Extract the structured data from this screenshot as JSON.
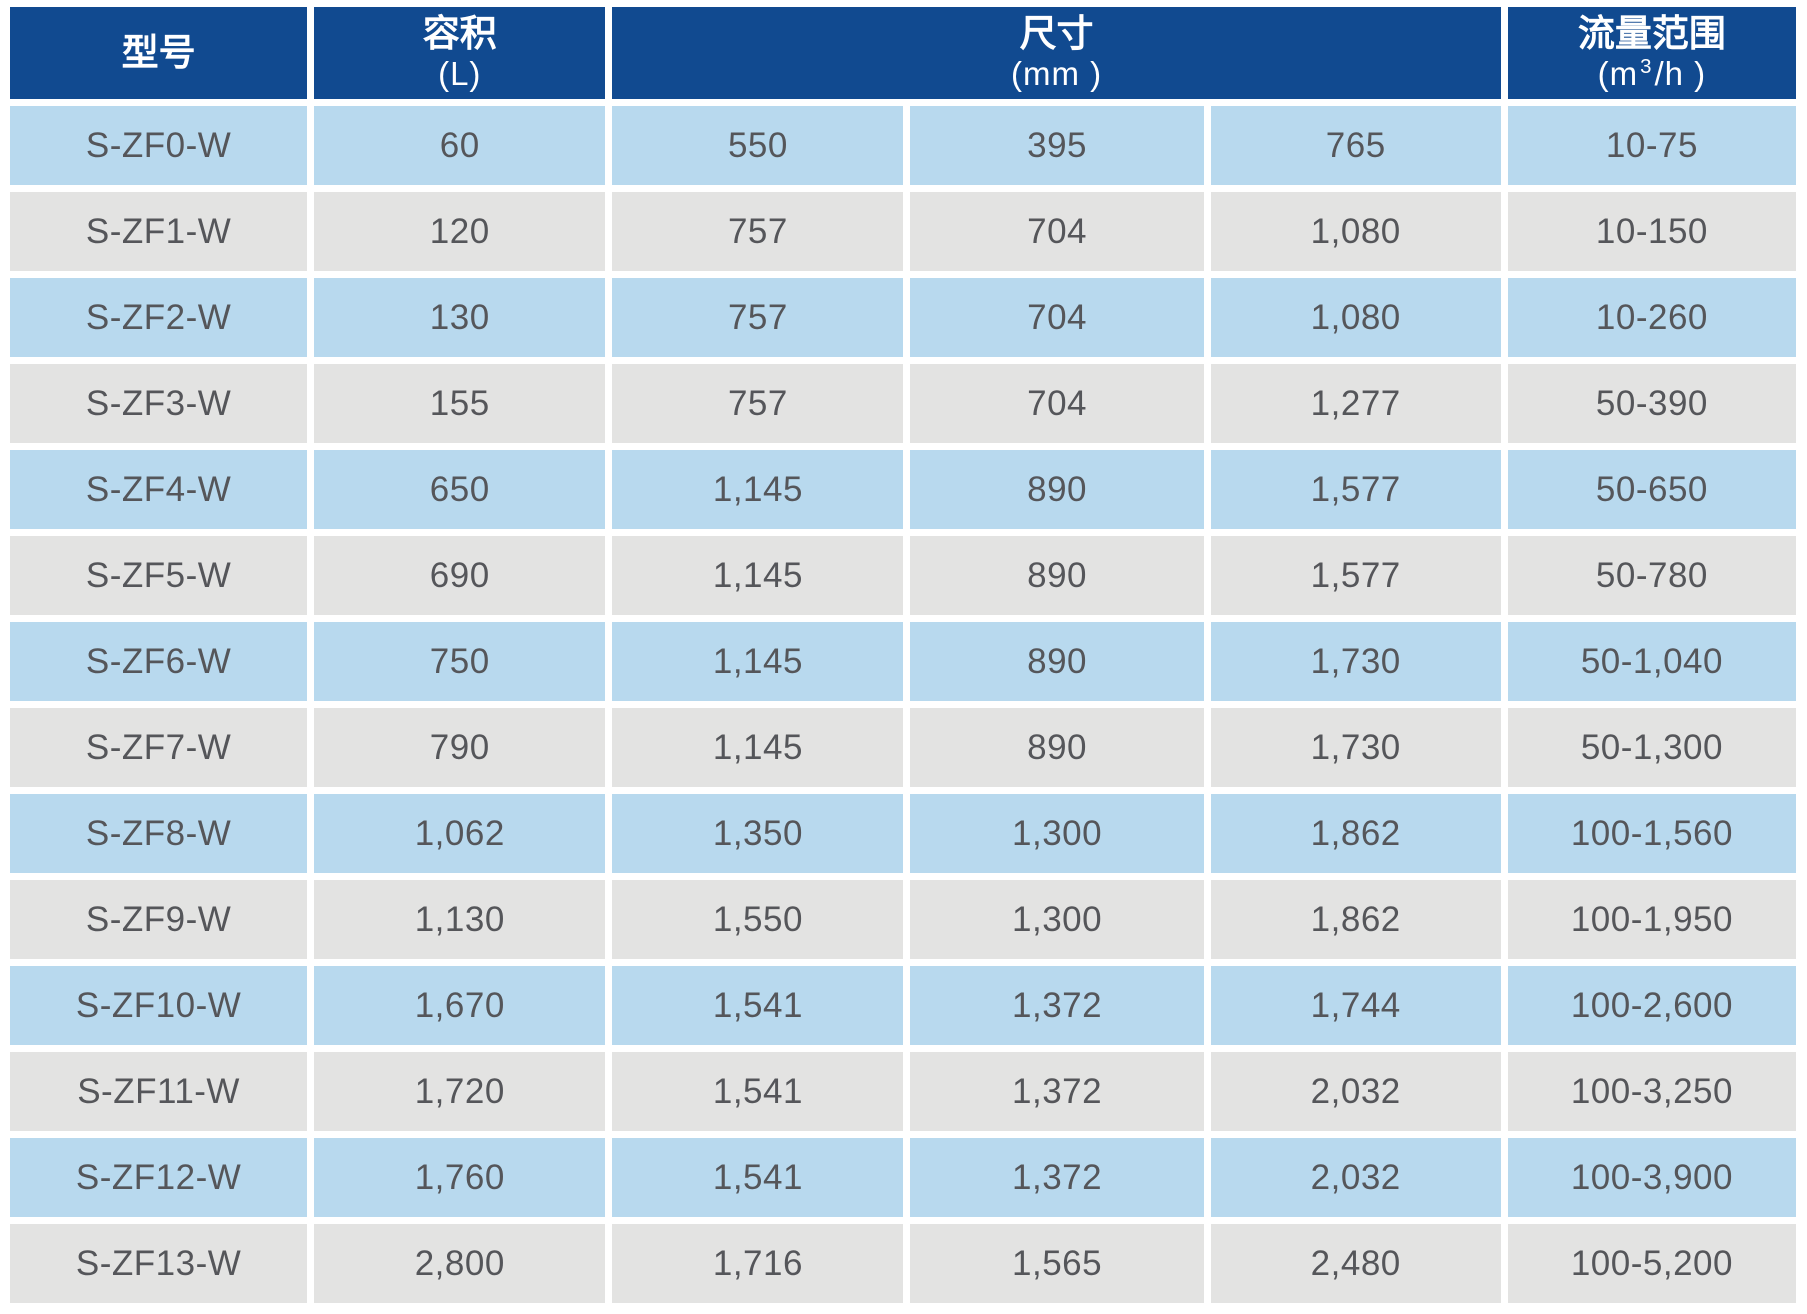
{
  "table": {
    "header": {
      "model_label": "型号",
      "volume_title": "容积",
      "volume_unit": "(L)",
      "size_title": "尺寸",
      "size_unit": "(mm )",
      "flow_title": "流量范围",
      "flow_unit_prefix": "(m",
      "flow_unit_sup": "3",
      "flow_unit_suffix": "/h )"
    },
    "rows": [
      {
        "model": "S-ZF0-W",
        "volume": "60",
        "dim_w": "550",
        "dim_d": "395",
        "dim_h": "765",
        "flow": "10-75"
      },
      {
        "model": "S-ZF1-W",
        "volume": "120",
        "dim_w": "757",
        "dim_d": "704",
        "dim_h": "1,080",
        "flow": "10-150"
      },
      {
        "model": "S-ZF2-W",
        "volume": "130",
        "dim_w": "757",
        "dim_d": "704",
        "dim_h": "1,080",
        "flow": "10-260"
      },
      {
        "model": "S-ZF3-W",
        "volume": "155",
        "dim_w": "757",
        "dim_d": "704",
        "dim_h": "1,277",
        "flow": "50-390"
      },
      {
        "model": "S-ZF4-W",
        "volume": "650",
        "dim_w": "1,145",
        "dim_d": "890",
        "dim_h": "1,577",
        "flow": "50-650"
      },
      {
        "model": "S-ZF5-W",
        "volume": "690",
        "dim_w": "1,145",
        "dim_d": "890",
        "dim_h": "1,577",
        "flow": "50-780"
      },
      {
        "model": "S-ZF6-W",
        "volume": "750",
        "dim_w": "1,145",
        "dim_d": "890",
        "dim_h": "1,730",
        "flow": "50-1,040"
      },
      {
        "model": "S-ZF7-W",
        "volume": "790",
        "dim_w": "1,145",
        "dim_d": "890",
        "dim_h": "1,730",
        "flow": "50-1,300"
      },
      {
        "model": "S-ZF8-W",
        "volume": "1,062",
        "dim_w": "1,350",
        "dim_d": "1,300",
        "dim_h": "1,862",
        "flow": "100-1,560"
      },
      {
        "model": "S-ZF9-W",
        "volume": "1,130",
        "dim_w": "1,550",
        "dim_d": "1,300",
        "dim_h": "1,862",
        "flow": "100-1,950"
      },
      {
        "model": "S-ZF10-W",
        "volume": "1,670",
        "dim_w": "1,541",
        "dim_d": "1,372",
        "dim_h": "1,744",
        "flow": "100-2,600"
      },
      {
        "model": "S-ZF11-W",
        "volume": "1,720",
        "dim_w": "1,541",
        "dim_d": "1,372",
        "dim_h": "2,032",
        "flow": "100-3,250"
      },
      {
        "model": "S-ZF12-W",
        "volume": "1,760",
        "dim_w": "1,541",
        "dim_d": "1,372",
        "dim_h": "2,032",
        "flow": "100-3,900"
      },
      {
        "model": "S-ZF13-W",
        "volume": "2,800",
        "dim_w": "1,716",
        "dim_d": "1,565",
        "dim_h": "2,480",
        "flow": "100-5,200"
      }
    ]
  },
  "colors": {
    "header_bg": "#114a90",
    "header_text": "#ffffff",
    "row_blue_bg": "#b8d9ee",
    "row_gray_bg": "#e3e3e2",
    "body_text": "#55565a",
    "gap": "#ffffff"
  }
}
